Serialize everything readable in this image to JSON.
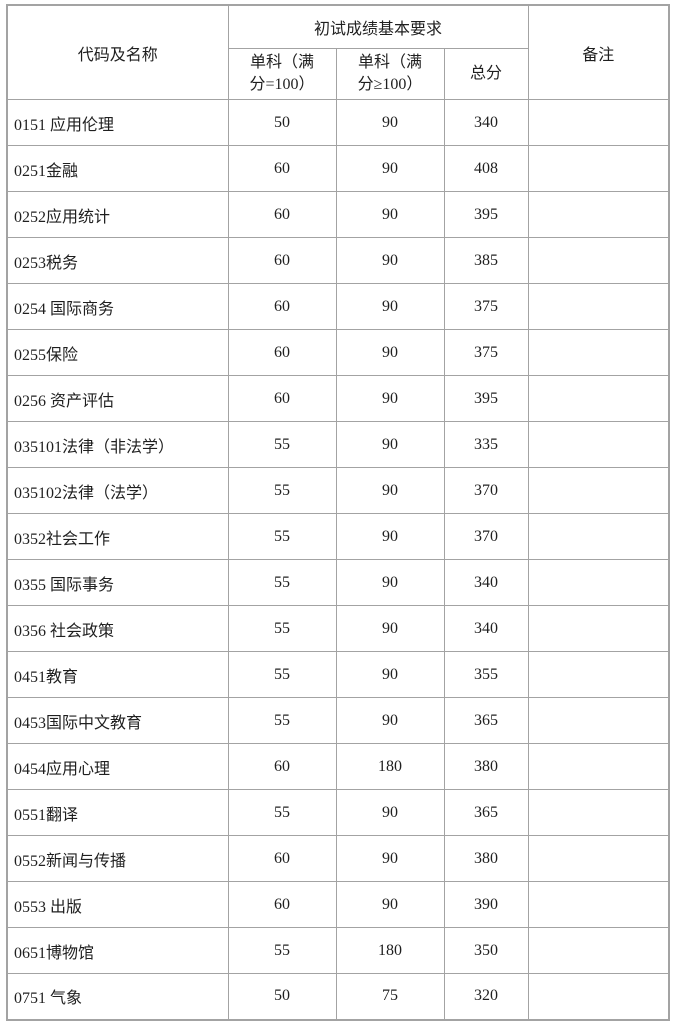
{
  "page": {
    "background_color": "#ffffff",
    "border_color": "#a3a3a3",
    "text_color": "#1f1f1f"
  },
  "table": {
    "header": {
      "code_name": "代码及名称",
      "group_title": "初试成绩基本要求",
      "sub_single_100": "单科（满分=100）",
      "sub_single_gt100": "单科（满分≥100）",
      "sub_total": "总分",
      "remarks": "备注"
    },
    "rows": [
      {
        "name": "0151 应用伦理",
        "single_100": "50",
        "single_gt100": "90",
        "total": "340",
        "remark": ""
      },
      {
        "name": "0251金融",
        "single_100": "60",
        "single_gt100": "90",
        "total": "408",
        "remark": ""
      },
      {
        "name": "0252应用统计",
        "single_100": "60",
        "single_gt100": "90",
        "total": "395",
        "remark": ""
      },
      {
        "name": "0253税务",
        "single_100": "60",
        "single_gt100": "90",
        "total": "385",
        "remark": ""
      },
      {
        "name": "0254 国际商务",
        "single_100": "60",
        "single_gt100": "90",
        "total": "375",
        "remark": ""
      },
      {
        "name": "0255保险",
        "single_100": "60",
        "single_gt100": "90",
        "total": "375",
        "remark": ""
      },
      {
        "name": "0256 资产评估",
        "single_100": "60",
        "single_gt100": "90",
        "total": "395",
        "remark": ""
      },
      {
        "name": "035101法律（非法学）",
        "single_100": "55",
        "single_gt100": "90",
        "total": "335",
        "remark": ""
      },
      {
        "name": "035102法律（法学）",
        "single_100": "55",
        "single_gt100": "90",
        "total": "370",
        "remark": ""
      },
      {
        "name": "0352社会工作",
        "single_100": "55",
        "single_gt100": "90",
        "total": "370",
        "remark": ""
      },
      {
        "name": "0355 国际事务",
        "single_100": "55",
        "single_gt100": "90",
        "total": "340",
        "remark": ""
      },
      {
        "name": "0356 社会政策",
        "single_100": "55",
        "single_gt100": "90",
        "total": "340",
        "remark": ""
      },
      {
        "name": "0451教育",
        "single_100": "55",
        "single_gt100": "90",
        "total": "355",
        "remark": ""
      },
      {
        "name": "0453国际中文教育",
        "single_100": "55",
        "single_gt100": "90",
        "total": "365",
        "remark": ""
      },
      {
        "name": "0454应用心理",
        "single_100": "60",
        "single_gt100": "180",
        "total": "380",
        "remark": ""
      },
      {
        "name": "0551翻译",
        "single_100": "55",
        "single_gt100": "90",
        "total": "365",
        "remark": ""
      },
      {
        "name": "0552新闻与传播",
        "single_100": "60",
        "single_gt100": "90",
        "total": "380",
        "remark": ""
      },
      {
        "name": "0553 出版",
        "single_100": "60",
        "single_gt100": "90",
        "total": "390",
        "remark": ""
      },
      {
        "name": "0651博物馆",
        "single_100": "55",
        "single_gt100": "180",
        "total": "350",
        "remark": ""
      },
      {
        "name": "0751 气象",
        "single_100": "50",
        "single_gt100": "75",
        "total": "320",
        "remark": ""
      }
    ]
  }
}
